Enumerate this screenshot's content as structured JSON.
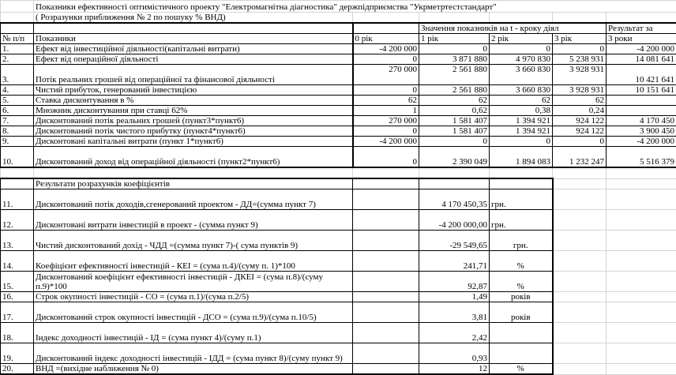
{
  "title": "Показники ефективності оптимістичного проекту \"Електромагнітна діагностика\" держпідприємства \"Укрметртестстандарт\"",
  "subtitle": "( Розразунки приближення № 2 по пошуку % ВНД)",
  "header": {
    "values_group": "Значення показників на t - кроку діял",
    "result_top": "Результат за",
    "num": "№ п/п",
    "indicator": "Показники",
    "years": [
      "0 рік",
      "1 рік",
      "2 рік",
      "3 рік"
    ],
    "result_bottom": "3 роки"
  },
  "rows": [
    {
      "num": "1.",
      "label": "Ефект від інвестиційної діяльності(капітальні витрати)",
      "values": [
        "-4 200 000",
        "0",
        "0",
        "0",
        "-4 200 000"
      ]
    },
    {
      "num": "2.",
      "label": "Ефект від операційної діяльності",
      "values": [
        "0",
        "3 871 880",
        "4 970 830",
        "5 238 931",
        "14 081 641"
      ]
    },
    {
      "num": "3.",
      "label": "Потік реальних грошей від операційної та фінансової діяльності",
      "values": [
        "270 000",
        "2 561 880",
        "3 660 830",
        "3 928 931",
        "10 421 641"
      ]
    },
    {
      "num": "4.",
      "label": "Чистий прибуток, генерований інвестицією",
      "values": [
        "0",
        "2 561 880",
        "3 660 830",
        "3 928 931",
        "10 151 641"
      ]
    },
    {
      "num": "5.",
      "label": "Ставка дисконтування в %",
      "values": [
        "62",
        "62",
        "62",
        "62",
        ""
      ]
    },
    {
      "num": "6.",
      "label": "Множник дисконтування при ставці 62%",
      "values": [
        "1",
        "0,62",
        "0,38",
        "0,24",
        ""
      ]
    },
    {
      "num": "7.",
      "label": "Дисконтований потік реальних грошей (пункт3*пункт6)",
      "values": [
        "270 000",
        "1 581 407",
        "1 394 921",
        "924 122",
        "4 170 450"
      ]
    },
    {
      "num": "8.",
      "label": "Дисконтований потік чистого прибутку (пункт4*пункт6)",
      "values": [
        "0",
        "1 581 407",
        "1 394 921",
        "924 122",
        "3 900 450"
      ]
    },
    {
      "num": "9.",
      "label": "Дисконтовані капітальні витрати (пункт 1*пункт6)",
      "values": [
        "-4 200 000",
        "0",
        "0",
        "0",
        "-4 200 000"
      ]
    },
    {
      "num": "10.",
      "label": "Дисконтований доход від операційної діяльності (пункт2*пункт6)",
      "values": [
        "0",
        "2 390 049",
        "1 894 083",
        "1 232 247",
        "5 516 379"
      ]
    }
  ],
  "results_title": "Результати розрахунків коефіцієнтів",
  "results": [
    {
      "num": "11.",
      "label": "Дисконтований потік доходів,сгенерований проектом - ДД=(сумма пункт 7)",
      "value": "4 170 450,35",
      "unit": "грн."
    },
    {
      "num": "12.",
      "label": "Дисконтовані витрати інвестицій в проект - (сумма пункт 9)",
      "value": "-4 200 000,00",
      "unit": "грн."
    },
    {
      "num": "13.",
      "label": "Чистий дисконтований дохід - ЧДД =(сумма пункт 7)-( сума пунктів 9)",
      "value": "-29 549,65",
      "unit": "грн."
    },
    {
      "num": "14.",
      "label": "Коефіцієнт ефективності інвестицій - КЕІ = (сума п.4)/(суму п. 1)*100",
      "value": "241,71",
      "unit": "%"
    },
    {
      "num": "15.",
      "label": "Дисконтований коефіцієнт ефективності інвестицій - ДКЕІ = (сума п.8)/(суму п.9)*100",
      "value": "92,87",
      "unit": "%"
    },
    {
      "num": "16.",
      "label": "Строк окупності інвестицій - СО = (сума п.1)/(сума п.2/5)",
      "value": "1,49",
      "unit": "років"
    },
    {
      "num": "17.",
      "label": "Дисконтований строк окупності інвестицій - ДСО = (сума п.9)/(сума п.10/5)",
      "value": "3,81",
      "unit": "років"
    },
    {
      "num": "18.",
      "label": " Індекс доходності інвестицій - ІД = (сума пункт 4)/(суму п.1)",
      "value": "2,42",
      "unit": ""
    },
    {
      "num": "19.",
      "label": "Дисконтований індекс доходності інвестицій - ІДД = (сума пункт 8)/(суму пункт 9)",
      "value": "0,93",
      "unit": ""
    },
    {
      "num": "20.",
      "label": "ВНД =(вихідне наближення № 0)",
      "value": "12",
      "unit": "%"
    }
  ]
}
